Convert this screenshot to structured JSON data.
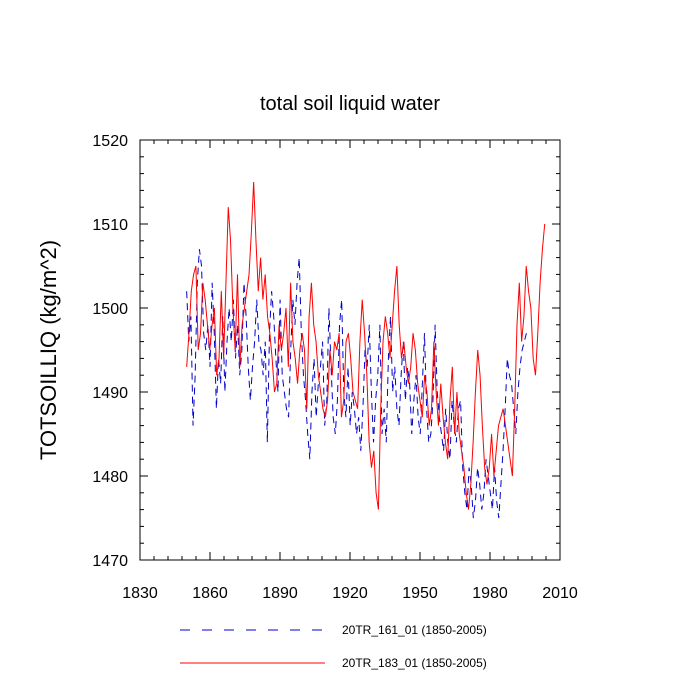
{
  "chart_data": {
    "type": "line",
    "title": "total soil liquid water",
    "xlabel": "",
    "ylabel": "TOTSOILLIQ  (kg/m^2)",
    "xlim": [
      1830,
      2010
    ],
    "ylim": [
      1470,
      1520
    ],
    "xticks": [
      1830,
      1860,
      1890,
      1920,
      1950,
      1980,
      2010
    ],
    "yticks": [
      1470,
      1480,
      1490,
      1500,
      1510,
      1520
    ],
    "grid": false,
    "legend_position": "bottom",
    "series": [
      {
        "name": "20TR_161_01 (1850-2005)",
        "color": "#0000cc",
        "style": "dashed",
        "x_start": 1850,
        "values": [
          1502,
          1496,
          1499,
          1486,
          1492,
          1503,
          1507,
          1505,
          1497,
          1495,
          1498,
          1493,
          1503,
          1497,
          1488,
          1494,
          1491,
          1499,
          1490,
          1496,
          1500,
          1496,
          1501,
          1494,
          1498,
          1492,
          1495,
          1503,
          1499,
          1493,
          1489,
          1493,
          1496,
          1501,
          1496,
          1495,
          1492,
          1496,
          1484,
          1497,
          1502,
          1499,
          1494,
          1490,
          1501,
          1492,
          1490,
          1488,
          1487,
          1495,
          1501,
          1498,
          1503,
          1506,
          1497,
          1492,
          1489,
          1485,
          1482,
          1490,
          1494,
          1487,
          1491,
          1493,
          1496,
          1486,
          1489,
          1500,
          1493,
          1487,
          1485,
          1489,
          1498,
          1501,
          1490,
          1487,
          1493,
          1486,
          1490,
          1488,
          1485,
          1487,
          1483,
          1488,
          1495,
          1493,
          1498,
          1490,
          1484,
          1489,
          1492,
          1498,
          1485,
          1488,
          1484,
          1494,
          1499,
          1490,
          1493,
          1488,
          1486,
          1492,
          1496,
          1489,
          1493,
          1491,
          1485,
          1489,
          1492,
          1487,
          1485,
          1491,
          1497,
          1488,
          1484,
          1485,
          1489,
          1498,
          1490,
          1487,
          1485,
          1483,
          1488,
          1484,
          1482,
          1489,
          1486,
          1484,
          1488,
          1489,
          1481,
          1478,
          1476,
          1481,
          1479,
          1475,
          1477,
          1481,
          1479,
          1476,
          1478,
          1482,
          1480,
          1478,
          1476,
          1481,
          1477,
          1475,
          1479,
          1483,
          1488,
          1494,
          1492,
          1491,
          1488,
          1485,
          1490,
          1493,
          1495,
          1496,
          1497
        ],
        "x_step": 0.91
      },
      {
        "name": "20TR_183_01 (1850-2005)",
        "color": "#ff0000",
        "style": "solid",
        "x_start": 1850,
        "values": [
          1493,
          1497,
          1502,
          1504,
          1505,
          1495,
          1497,
          1503,
          1501,
          1498,
          1495,
          1498,
          1500,
          1492,
          1494,
          1502,
          1494,
          1503,
          1512,
          1508,
          1500,
          1495,
          1504,
          1493,
          1498,
          1500,
          1502,
          1504,
          1509,
          1515,
          1508,
          1502,
          1506,
          1501,
          1504,
          1499,
          1497,
          1494,
          1490,
          1491,
          1498,
          1495,
          1497,
          1500,
          1493,
          1503,
          1496,
          1494,
          1491,
          1495,
          1497,
          1495,
          1488,
          1499,
          1503,
          1498,
          1496,
          1492,
          1490,
          1488,
          1487,
          1489,
          1495,
          1492,
          1496,
          1495,
          1497,
          1487,
          1489,
          1496,
          1497,
          1494,
          1490,
          1489,
          1488,
          1496,
          1501,
          1497,
          1492,
          1484,
          1481,
          1483,
          1478,
          1476,
          1488,
          1496,
          1499,
          1497,
          1494,
          1498,
          1502,
          1505,
          1498,
          1494,
          1496,
          1493,
          1491,
          1493,
          1497,
          1495,
          1491,
          1489,
          1487,
          1492,
          1490,
          1486,
          1488,
          1496,
          1490,
          1486,
          1491,
          1487,
          1484,
          1482,
          1489,
          1493,
          1485,
          1490,
          1485,
          1483,
          1481,
          1478,
          1476,
          1479,
          1484,
          1490,
          1495,
          1492,
          1486,
          1481,
          1479,
          1481,
          1485,
          1480,
          1483,
          1486,
          1487,
          1488,
          1486,
          1484,
          1482,
          1480,
          1488,
          1498,
          1503,
          1496,
          1499,
          1505,
          1502,
          1500,
          1494,
          1492,
          1497,
          1503,
          1507,
          1510
        ],
        "x_step": 0.99
      }
    ]
  }
}
